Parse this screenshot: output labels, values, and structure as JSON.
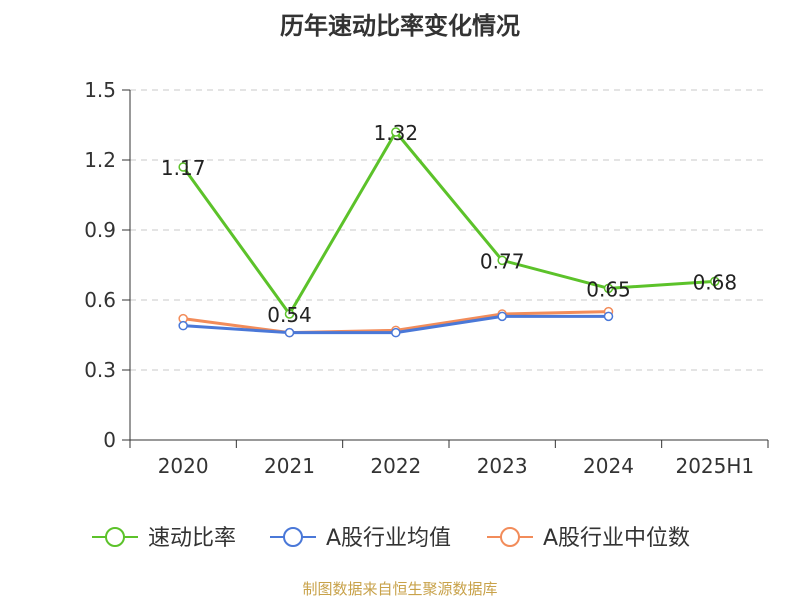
{
  "chart_data": {
    "type": "line",
    "title": "历年速动比率变化情况",
    "categories": [
      "2020",
      "2021",
      "2022",
      "2023",
      "2024",
      "2025H1"
    ],
    "ylim": [
      0,
      1.5
    ],
    "yticks": [
      0,
      0.3,
      0.6,
      0.9,
      1.2,
      1.5
    ],
    "ytick_labels": [
      "0",
      "0.3",
      "0.6",
      "0.9",
      "1.2",
      "1.5"
    ],
    "grid": true,
    "legend_position": "bottom",
    "series": [
      {
        "name": "速动比率",
        "color": "#5cc22a",
        "values": [
          1.17,
          0.54,
          1.32,
          0.77,
          0.65,
          0.68
        ],
        "labels": [
          "1.17",
          "0.54",
          "1.32",
          "0.77",
          "0.65",
          "0.68"
        ]
      },
      {
        "name": "A股行业均值",
        "color": "#4a78d8",
        "values": [
          0.49,
          0.46,
          0.46,
          0.53,
          0.53,
          null
        ]
      },
      {
        "name": "A股行业中位数",
        "color": "#f28c5a",
        "values": [
          0.52,
          0.46,
          0.47,
          0.54,
          0.55,
          null
        ]
      }
    ]
  },
  "footer": "制图数据来自恒生聚源数据库"
}
